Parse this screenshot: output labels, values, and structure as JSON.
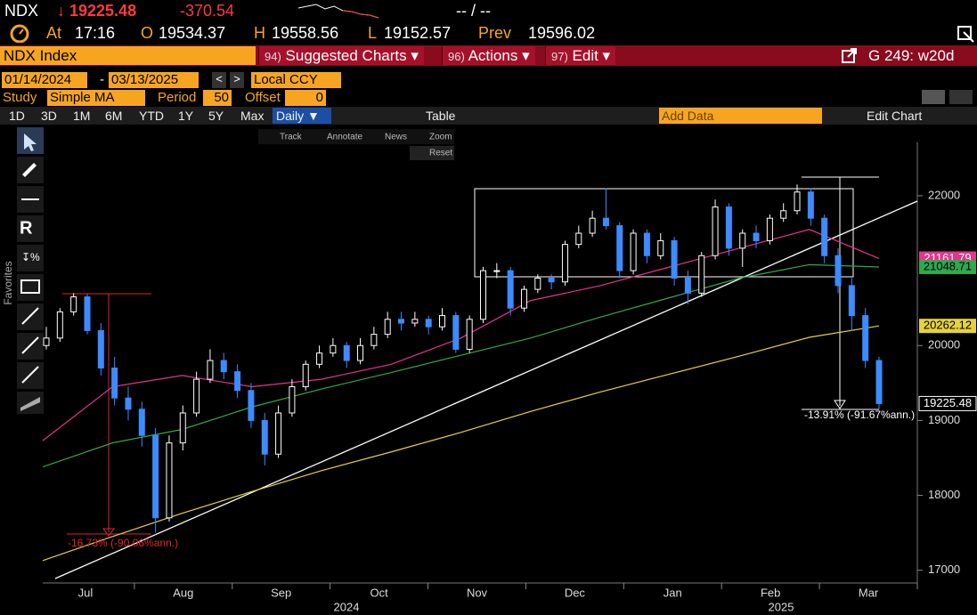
{
  "header": {
    "ticker": "NDX",
    "last": "↓ 19225.48",
    "change": "-370.54",
    "bid_ask": "-- / --",
    "time_label": "At",
    "time": "17:16",
    "open_label": "O",
    "open": "19534.37",
    "high_label": "H",
    "high": "19558.56",
    "low_label": "L",
    "low": "19152.57",
    "prev_label": "Prev",
    "prev": "19596.02"
  },
  "menu": {
    "security": "NDX Index",
    "suggested_num": "94)",
    "suggested": "Suggested Charts ▾",
    "actions_num": "96)",
    "actions": "Actions ▾",
    "edit_num": "97)",
    "edit": "Edit ▾",
    "page": "G 249: w20d"
  },
  "settings": {
    "start": "01/14/2024",
    "dash": "-",
    "end": "03/13/2025",
    "currency": "Local CCY",
    "study_label": "Study",
    "study": "Simple MA",
    "period_label": "Period",
    "period": "50",
    "offset_label": "Offset",
    "offset": "0"
  },
  "toolbar": {
    "ranges": [
      "1D",
      "3D",
      "1M",
      "6M",
      "YTD",
      "1Y",
      "5Y",
      "Max"
    ],
    "frequency": "Daily ▼",
    "table": "Table",
    "add_data": "Add Data",
    "edit_chart": "Edit Chart",
    "favorites": "Favorites",
    "tools": [
      "Track",
      "Annotate",
      "News",
      "Zoom"
    ],
    "reset": "Reset"
  },
  "chart_data": {
    "type": "candlestick",
    "up_color": "#ffffff",
    "down_color": "#3d8bff",
    "candles": [
      [
        20000,
        20250,
        19950,
        20100
      ],
      [
        20100,
        20500,
        20050,
        20450
      ],
      [
        20450,
        20700,
        20400,
        20650
      ],
      [
        20650,
        20690,
        20150,
        20200
      ],
      [
        20200,
        20300,
        19600,
        19700
      ],
      [
        19700,
        19850,
        19200,
        19300
      ],
      [
        19300,
        19450,
        19000,
        19150
      ],
      [
        19150,
        19250,
        18650,
        18800
      ],
      [
        18800,
        18900,
        17500,
        17700
      ],
      [
        17700,
        18800,
        17650,
        18700
      ],
      [
        18700,
        19200,
        18600,
        19100
      ],
      [
        19100,
        19650,
        19050,
        19550
      ],
      [
        19550,
        19950,
        19500,
        19800
      ],
      [
        19800,
        19900,
        19550,
        19650
      ],
      [
        19650,
        19750,
        19300,
        19400
      ],
      [
        19400,
        19500,
        18900,
        19000
      ],
      [
        19000,
        19100,
        18400,
        18550
      ],
      [
        18550,
        19200,
        18500,
        19100
      ],
      [
        19100,
        19550,
        19050,
        19450
      ],
      [
        19450,
        19800,
        19400,
        19750
      ],
      [
        19750,
        20000,
        19700,
        19900
      ],
      [
        19900,
        20100,
        19850,
        20000
      ],
      [
        20000,
        20050,
        19700,
        19800
      ],
      [
        19800,
        20100,
        19750,
        20000
      ],
      [
        20000,
        20250,
        19950,
        20150
      ],
      [
        20150,
        20450,
        20100,
        20350
      ],
      [
        20350,
        20450,
        20200,
        20300
      ],
      [
        20300,
        20450,
        20250,
        20350
      ],
      [
        20350,
        20400,
        20150,
        20250
      ],
      [
        20250,
        20500,
        20200,
        20400
      ],
      [
        20400,
        20450,
        19900,
        19950
      ],
      [
        19950,
        20400,
        19900,
        20350
      ],
      [
        20350,
        21050,
        20300,
        21000
      ],
      [
        21000,
        21100,
        20900,
        21000
      ],
      [
        21000,
        21050,
        20400,
        20500
      ],
      [
        20500,
        20800,
        20450,
        20750
      ],
      [
        20750,
        20950,
        20700,
        20900
      ],
      [
        20900,
        20950,
        20750,
        20850
      ],
      [
        20850,
        21400,
        20800,
        21350
      ],
      [
        21350,
        21600,
        21300,
        21500
      ],
      [
        21500,
        21800,
        21450,
        21700
      ],
      [
        21700,
        22100,
        21550,
        21600
      ],
      [
        21600,
        21650,
        20900,
        21000
      ],
      [
        21000,
        21550,
        20950,
        21500
      ],
      [
        21500,
        21550,
        21100,
        21200
      ],
      [
        21200,
        21500,
        21150,
        21400
      ],
      [
        21400,
        21450,
        20800,
        20900
      ],
      [
        20900,
        21000,
        20550,
        20700
      ],
      [
        20700,
        21250,
        20650,
        21200
      ],
      [
        21200,
        21950,
        21150,
        21850
      ],
      [
        21850,
        21900,
        21200,
        21300
      ],
      [
        21300,
        21550,
        21050,
        21500
      ],
      [
        21500,
        21600,
        21300,
        21400
      ],
      [
        21400,
        21750,
        21350,
        21700
      ],
      [
        21700,
        21900,
        21650,
        21800
      ],
      [
        21800,
        22150,
        21750,
        22050
      ],
      [
        22050,
        22100,
        21600,
        21700
      ],
      [
        21700,
        21750,
        21100,
        21200
      ],
      [
        21200,
        21300,
        20700,
        20800
      ],
      [
        20800,
        20900,
        20200,
        20400
      ],
      [
        20400,
        20500,
        19700,
        19800
      ],
      [
        19800,
        19850,
        19150,
        19225.48
      ]
    ],
    "series": [
      {
        "color": "#e8338a",
        "label_text": "#ffffff",
        "values": [
          18730,
          19450,
          19600,
          19450,
          19550,
          19750,
          20100,
          20600,
          20800,
          21050,
          21300,
          21550,
          21161.79
        ]
      },
      {
        "color": "#2fa84f",
        "label_text": "#000000",
        "values": [
          18380,
          18700,
          18880,
          19180,
          19420,
          19640,
          19870,
          20100,
          20380,
          20640,
          20900,
          21080,
          21048.71
        ]
      },
      {
        "color": "#e6d23c",
        "label_text": "#000000",
        "values": [
          17130,
          17450,
          17760,
          18050,
          18330,
          18580,
          18840,
          19120,
          19380,
          19620,
          19860,
          20110,
          20262.12
        ]
      }
    ],
    "ylim": [
      16830,
      22950
    ],
    "yticks": [
      17000,
      18000,
      19000,
      20000,
      22000
    ],
    "x_labels": [
      "Jul",
      "Aug",
      "Sep",
      "Oct",
      "Nov",
      "Dec",
      "Jan",
      "Feb",
      "Mar"
    ],
    "years": [
      "2024",
      "2025"
    ],
    "annotations": [
      "-16.73% (-90.06%ann.)",
      "-13.91% (-91.67%ann.)"
    ]
  }
}
